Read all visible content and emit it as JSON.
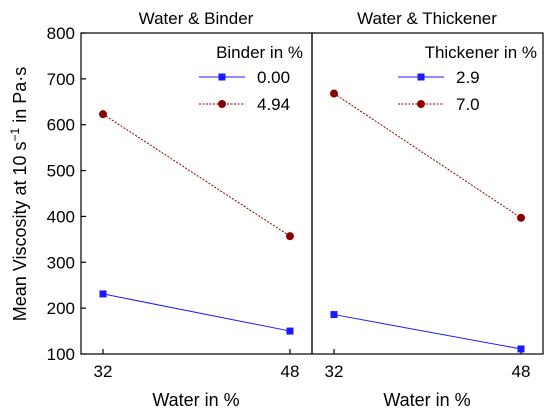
{
  "chart_data": {
    "type": "line",
    "ylabel": "Mean Viscosity at 10 s",
    "ylabel_sup": "−1",
    "ylabel_unit": " in Pa·s",
    "ylim": [
      100,
      800
    ],
    "yticks": [
      "100",
      "200",
      "300",
      "400",
      "500",
      "600",
      "700",
      "800"
    ],
    "grid": false,
    "panels": [
      {
        "title": "Water & Binder",
        "xlabel": "Water in %",
        "categories": [
          "32",
          "48"
        ],
        "legend_title": "Binder in %",
        "legend_position": "top-right",
        "series": [
          {
            "name": "0.00",
            "values": [
              231,
              150
            ],
            "color": "#1a1aff",
            "marker": "square",
            "line": "solid"
          },
          {
            "name": "4.94",
            "values": [
              623,
              357
            ],
            "color": "#8b0000",
            "marker": "circle",
            "line": "dotted"
          }
        ]
      },
      {
        "title": "Water & Thickener",
        "xlabel": "Water in %",
        "categories": [
          "32",
          "48"
        ],
        "legend_title": "Thickener in %",
        "legend_position": "top-right",
        "series": [
          {
            "name": "2.9",
            "values": [
              186,
              111
            ],
            "color": "#1a1aff",
            "marker": "square",
            "line": "solid"
          },
          {
            "name": "7.0",
            "values": [
              668,
              397
            ],
            "color": "#8b0000",
            "marker": "circle",
            "line": "dotted"
          }
        ]
      }
    ]
  }
}
